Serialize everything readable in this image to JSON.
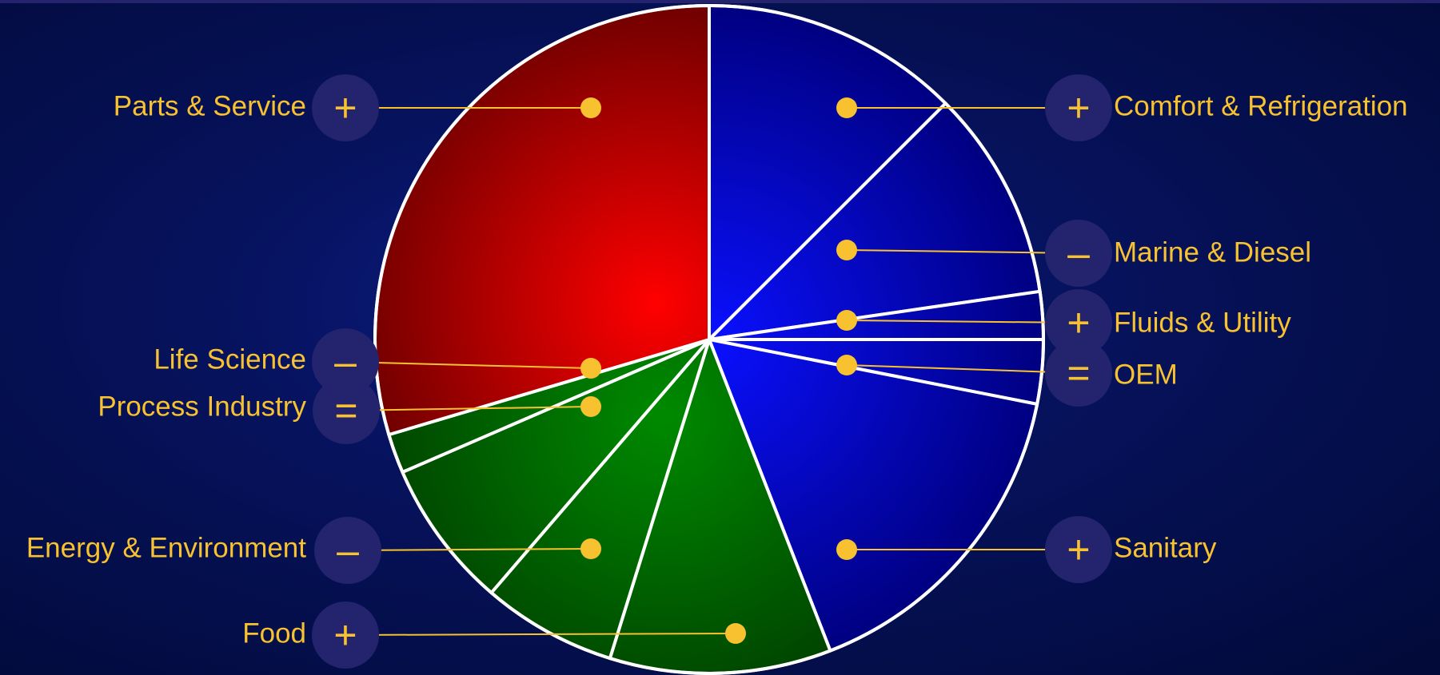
{
  "chart_data": {
    "type": "pie",
    "title": "",
    "start_angle_deg": 0,
    "direction": "clockwise",
    "segments": [
      {
        "label": "Comfort & Refrigeration",
        "value": 12.5,
        "group": "blue",
        "trend": "+"
      },
      {
        "label": "Marine & Diesel",
        "value": 10.2,
        "group": "blue",
        "trend": "–"
      },
      {
        "label": "Fluids & Utility",
        "value": 2.3,
        "group": "blue",
        "trend": "+"
      },
      {
        "label": "OEM",
        "value": 3.1,
        "group": "blue",
        "trend": "="
      },
      {
        "label": "Sanitary",
        "value": 16.0,
        "group": "blue",
        "trend": "+"
      },
      {
        "label": "Food",
        "value": 10.7,
        "group": "green",
        "trend": "+"
      },
      {
        "label": "Energy & Environment",
        "value": 6.5,
        "group": "green",
        "trend": "–"
      },
      {
        "label": "Process Industry",
        "value": 7.2,
        "group": "green",
        "trend": "="
      },
      {
        "label": "Life Science",
        "value": 1.9,
        "group": "green",
        "trend": "–"
      },
      {
        "label": "Parts & Service",
        "value": 29.6,
        "group": "red",
        "trend": "+"
      }
    ],
    "legend": "none"
  },
  "colors": {
    "blue_light": "#0a10ff",
    "blue_dark": "#000080",
    "green_light": "#008a00",
    "green_dark": "#003d00",
    "red_light": "#ff0000",
    "red_dark": "#6e0000",
    "label": "#f7c130",
    "badge": "#23236e",
    "slice_edge": "#ffffff"
  },
  "icons": {
    "+": "plus-icon",
    "–": "minus-icon",
    "=": "equals-icon"
  }
}
